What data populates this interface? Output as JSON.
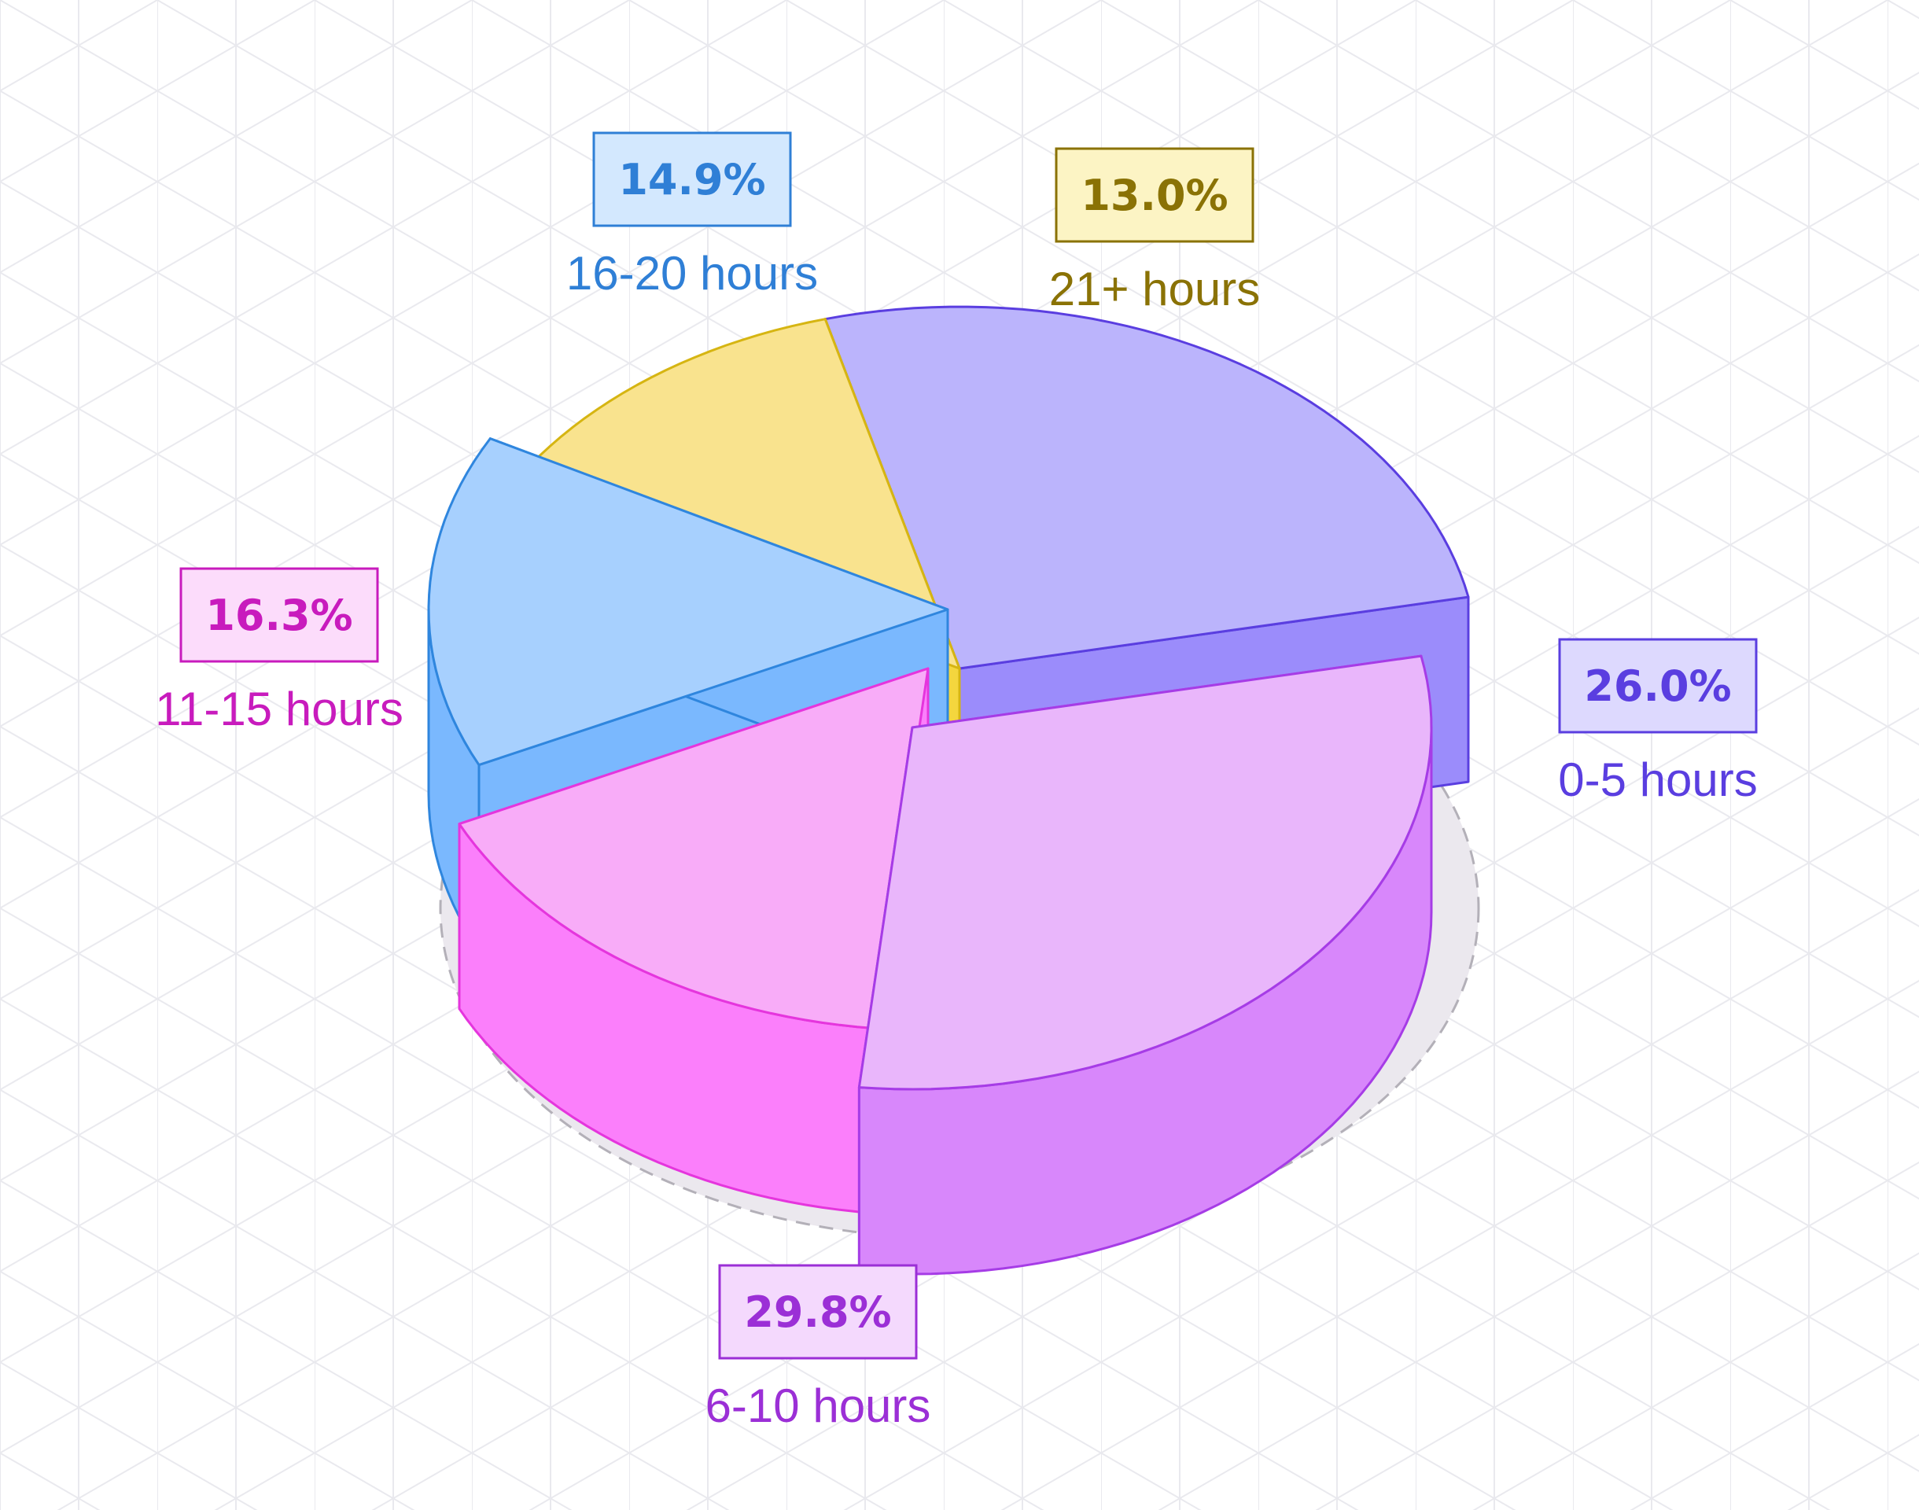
{
  "chart_data": {
    "type": "pie",
    "title": "",
    "slices": [
      {
        "label": "0-5 hours",
        "value": 26.0,
        "display": "26.0%",
        "top": "#bbb4fc",
        "side": "#9b8cfb",
        "stroke": "#5a3ee0",
        "box": "#ddd9fe",
        "text": "#5a3ee0"
      },
      {
        "label": "6-10 hours",
        "value": 29.8,
        "display": "29.8%",
        "top": "#e9b6fb",
        "side": "#d887fb",
        "stroke": "#a63ce6",
        "box": "#f4d9fd",
        "text": "#9b2fd6"
      },
      {
        "label": "11-15 hours",
        "value": 16.3,
        "display": "16.3%",
        "top": "#f8acf8",
        "side": "#fb7ffb",
        "stroke": "#e535dd",
        "box": "#fcdcfb",
        "text": "#c81bbd"
      },
      {
        "label": "16-20 hours",
        "value": 14.9,
        "display": "14.9%",
        "top": "#a7d0fe",
        "side": "#7ab8fe",
        "stroke": "#2f86de",
        "box": "#d3e8fe",
        "text": "#2f7fd6"
      },
      {
        "label": "21+ hours",
        "value": 13.0,
        "display": "13.0%",
        "top": "#f9e38e",
        "side": "#f4d63e",
        "stroke": "#d6b512",
        "box": "#fcf4c4",
        "text": "#8a7205"
      }
    ]
  }
}
